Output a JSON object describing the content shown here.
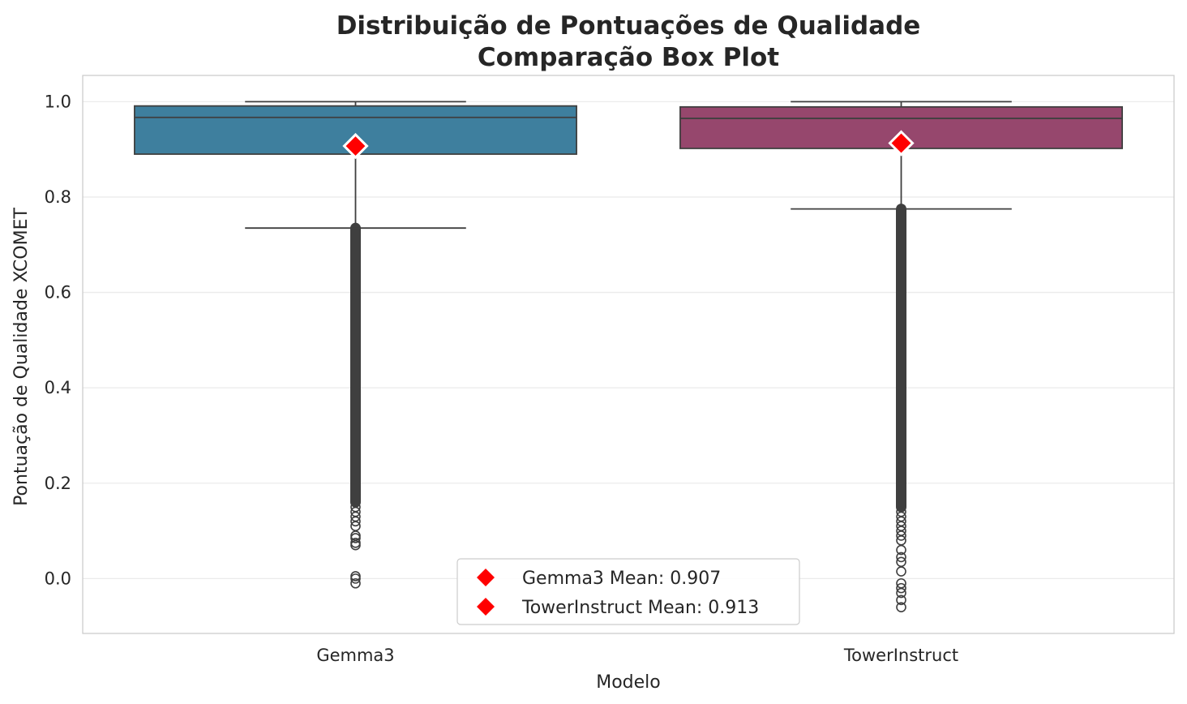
{
  "chart_data": {
    "type": "box",
    "title": "Distribuição de Pontuações de Qualidade",
    "subtitle": "Comparação Box Plot",
    "xlabel": "Modelo",
    "ylabel": "Pontuação de Qualidade XCOMET",
    "ylim": [
      -0.115,
      1.055
    ],
    "yticks": [
      "0.0",
      "0.2",
      "0.4",
      "0.6",
      "0.8",
      "1.0"
    ],
    "grid": true,
    "legend_position": "bottom-center",
    "categories": [
      "Gemma3",
      "TowerInstruct"
    ],
    "series": [
      {
        "category": "Gemma3",
        "color": "#3e7f9e",
        "whisker_low": 0.735,
        "q1": 0.89,
        "median": 0.967,
        "q3": 0.991,
        "whisker_high": 1.0,
        "mean": 0.907,
        "outlier_band": [
          0.16,
          0.735
        ],
        "outliers": [
          0.15,
          0.14,
          0.13,
          0.12,
          0.11,
          0.09,
          0.085,
          0.075,
          0.07,
          0.005,
          0.0,
          -0.01
        ]
      },
      {
        "category": "TowerInstruct",
        "color": "#96476d",
        "whisker_low": 0.775,
        "q1": 0.902,
        "median": 0.965,
        "q3": 0.989,
        "whisker_high": 1.0,
        "mean": 0.913,
        "outlier_band": [
          0.15,
          0.775
        ],
        "outliers": [
          0.14,
          0.13,
          0.12,
          0.11,
          0.1,
          0.09,
          0.08,
          0.06,
          0.045,
          0.035,
          0.015,
          -0.01,
          -0.02,
          -0.03,
          -0.045,
          -0.06
        ]
      }
    ],
    "legend": [
      {
        "label": "Gemma3 Mean: 0.907",
        "color": "#ff0000"
      },
      {
        "label": "TowerInstruct Mean: 0.913",
        "color": "#ff0000"
      }
    ]
  }
}
